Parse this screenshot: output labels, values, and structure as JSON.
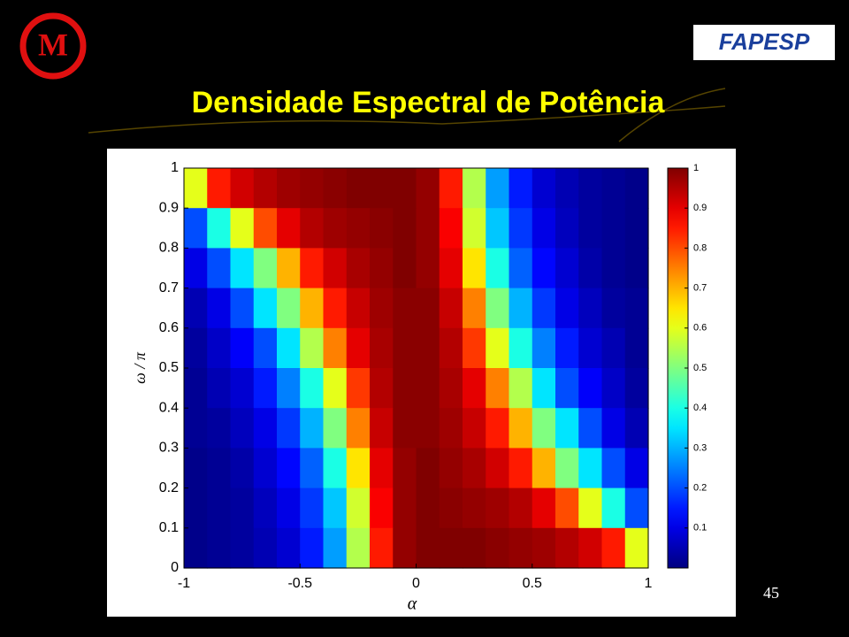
{
  "slide": {
    "title": "Densidade Espectral de Potência",
    "page_number": "45",
    "logo_left": "M",
    "logo_right": "FAPESP"
  },
  "chart_data": {
    "type": "heatmap",
    "colormap": "jet",
    "xlabel": "α",
    "ylabel": "ω / π",
    "xlim": [
      -1,
      1
    ],
    "ylim": [
      0,
      1
    ],
    "xticks": [
      -1,
      -0.5,
      0,
      0.5,
      1
    ],
    "yticks": [
      0,
      0.1,
      0.2,
      0.3,
      0.4,
      0.5,
      0.6,
      0.7,
      0.8,
      0.9,
      1
    ],
    "clim": [
      0,
      1
    ],
    "colorbar_ticks": [
      0.1,
      0.2,
      0.3,
      0.4,
      0.5,
      0.6,
      0.7,
      0.8,
      0.9,
      1
    ],
    "x": [
      -0.95,
      -0.85,
      -0.75,
      -0.65,
      -0.55,
      -0.45,
      -0.35,
      -0.25,
      -0.15,
      -0.05,
      0.05,
      0.15,
      0.25,
      0.35,
      0.45,
      0.55,
      0.65,
      0.75,
      0.85,
      0.95
    ],
    "y": [
      0.95,
      0.85,
      0.75,
      0.65,
      0.55,
      0.45,
      0.35,
      0.25,
      0.15,
      0.05
    ],
    "z": [
      [
        0.6,
        0.85,
        0.92,
        0.95,
        0.97,
        0.98,
        0.99,
        1,
        1,
        1,
        0.98,
        0.85,
        0.55,
        0.28,
        0.15,
        0.08,
        0.05,
        0.03,
        0.02,
        0.01
      ],
      [
        0.2,
        0.4,
        0.6,
        0.8,
        0.9,
        0.95,
        0.97,
        0.98,
        0.99,
        1,
        0.98,
        0.88,
        0.58,
        0.32,
        0.18,
        0.1,
        0.06,
        0.03,
        0.02,
        0.01
      ],
      [
        0.1,
        0.2,
        0.35,
        0.5,
        0.7,
        0.85,
        0.92,
        0.96,
        0.98,
        1,
        0.98,
        0.9,
        0.65,
        0.4,
        0.22,
        0.13,
        0.08,
        0.04,
        0.02,
        0.01
      ],
      [
        0.05,
        0.1,
        0.2,
        0.35,
        0.5,
        0.7,
        0.85,
        0.93,
        0.97,
        0.99,
        0.99,
        0.93,
        0.75,
        0.5,
        0.3,
        0.18,
        0.1,
        0.06,
        0.03,
        0.02
      ],
      [
        0.03,
        0.07,
        0.12,
        0.2,
        0.35,
        0.55,
        0.75,
        0.9,
        0.96,
        0.99,
        0.99,
        0.95,
        0.82,
        0.6,
        0.4,
        0.25,
        0.15,
        0.08,
        0.05,
        0.02
      ],
      [
        0.02,
        0.05,
        0.08,
        0.15,
        0.25,
        0.4,
        0.6,
        0.82,
        0.95,
        0.99,
        0.99,
        0.96,
        0.9,
        0.75,
        0.55,
        0.35,
        0.2,
        0.12,
        0.07,
        0.03
      ],
      [
        0.02,
        0.03,
        0.06,
        0.1,
        0.18,
        0.3,
        0.5,
        0.75,
        0.93,
        0.99,
        0.99,
        0.97,
        0.93,
        0.85,
        0.7,
        0.5,
        0.35,
        0.2,
        0.1,
        0.05
      ],
      [
        0.01,
        0.02,
        0.04,
        0.08,
        0.13,
        0.22,
        0.4,
        0.65,
        0.9,
        0.98,
        1,
        0.98,
        0.96,
        0.92,
        0.85,
        0.7,
        0.5,
        0.35,
        0.2,
        0.1
      ],
      [
        0.01,
        0.02,
        0.03,
        0.06,
        0.1,
        0.18,
        0.32,
        0.58,
        0.88,
        0.98,
        1,
        0.99,
        0.98,
        0.97,
        0.95,
        0.9,
        0.8,
        0.6,
        0.4,
        0.2
      ],
      [
        0.01,
        0.02,
        0.03,
        0.05,
        0.08,
        0.15,
        0.28,
        0.55,
        0.85,
        0.98,
        1,
        1,
        1,
        0.99,
        0.98,
        0.97,
        0.95,
        0.92,
        0.85,
        0.6
      ]
    ]
  }
}
